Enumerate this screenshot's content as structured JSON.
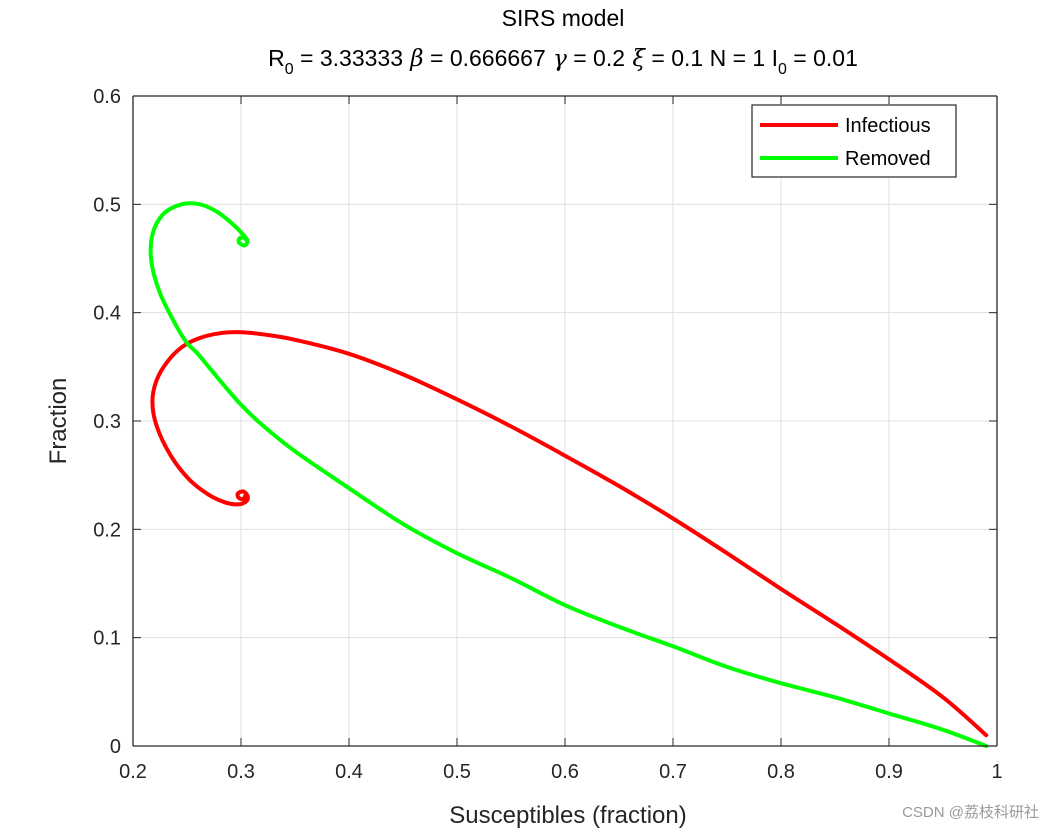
{
  "chart_data": {
    "type": "line",
    "title": "SIRS model",
    "subtitle_parts": [
      {
        "name": "R",
        "sub": "0",
        "value": " = 3.33333"
      },
      {
        "greek": "β",
        "value": " = 0.666667"
      },
      {
        "greek": "γ",
        "value": " = 0.2"
      },
      {
        "greek": "ξ",
        "value": " = 0.1"
      },
      {
        "name": "N",
        "value": " = 1"
      },
      {
        "name": "I",
        "sub": "0",
        "value": " = 0.01"
      }
    ],
    "xlabel": "Susceptibles (fraction)",
    "ylabel": "Fraction",
    "xlim": [
      0.2,
      1
    ],
    "ylim": [
      0,
      0.6
    ],
    "xticks": [
      "0.2",
      "0.3",
      "0.4",
      "0.5",
      "0.6",
      "0.7",
      "0.8",
      "0.9",
      "1"
    ],
    "yticks": [
      "0",
      "0.1",
      "0.2",
      "0.3",
      "0.4",
      "0.5",
      "0.6"
    ],
    "grid": true,
    "legend_position": "top-right",
    "series": [
      {
        "name": "Infectious",
        "color": "#ff0000",
        "points": [
          [
            0.99,
            0.01
          ],
          [
            0.95,
            0.045
          ],
          [
            0.9,
            0.08
          ],
          [
            0.85,
            0.113
          ],
          [
            0.8,
            0.145
          ],
          [
            0.75,
            0.178
          ],
          [
            0.7,
            0.21
          ],
          [
            0.65,
            0.24
          ],
          [
            0.6,
            0.268
          ],
          [
            0.55,
            0.295
          ],
          [
            0.5,
            0.32
          ],
          [
            0.45,
            0.343
          ],
          [
            0.4,
            0.362
          ],
          [
            0.35,
            0.375
          ],
          [
            0.32,
            0.38
          ],
          [
            0.3,
            0.382
          ],
          [
            0.28,
            0.381
          ],
          [
            0.26,
            0.376
          ],
          [
            0.245,
            0.368
          ],
          [
            0.232,
            0.355
          ],
          [
            0.222,
            0.338
          ],
          [
            0.218,
            0.318
          ],
          [
            0.222,
            0.295
          ],
          [
            0.235,
            0.268
          ],
          [
            0.252,
            0.246
          ],
          [
            0.27,
            0.232
          ],
          [
            0.285,
            0.225
          ],
          [
            0.297,
            0.223
          ],
          [
            0.305,
            0.226
          ],
          [
            0.306,
            0.231
          ],
          [
            0.302,
            0.235
          ],
          [
            0.297,
            0.233
          ],
          [
            0.298,
            0.229
          ],
          [
            0.302,
            0.228
          ],
          [
            0.304,
            0.231
          ]
        ]
      },
      {
        "name": "Removed",
        "color": "#00ff00",
        "points": [
          [
            0.99,
            0.0
          ],
          [
            0.95,
            0.015
          ],
          [
            0.9,
            0.03
          ],
          [
            0.85,
            0.045
          ],
          [
            0.8,
            0.058
          ],
          [
            0.75,
            0.073
          ],
          [
            0.7,
            0.092
          ],
          [
            0.65,
            0.11
          ],
          [
            0.6,
            0.13
          ],
          [
            0.55,
            0.155
          ],
          [
            0.5,
            0.178
          ],
          [
            0.45,
            0.205
          ],
          [
            0.4,
            0.238
          ],
          [
            0.35,
            0.272
          ],
          [
            0.32,
            0.296
          ],
          [
            0.3,
            0.315
          ],
          [
            0.28,
            0.338
          ],
          [
            0.26,
            0.362
          ],
          [
            0.25,
            0.372
          ],
          [
            0.24,
            0.388
          ],
          [
            0.225,
            0.418
          ],
          [
            0.217,
            0.447
          ],
          [
            0.218,
            0.472
          ],
          [
            0.228,
            0.491
          ],
          [
            0.245,
            0.5
          ],
          [
            0.262,
            0.5
          ],
          [
            0.278,
            0.493
          ],
          [
            0.292,
            0.482
          ],
          [
            0.302,
            0.472
          ],
          [
            0.306,
            0.466
          ],
          [
            0.303,
            0.462
          ],
          [
            0.298,
            0.465
          ],
          [
            0.299,
            0.469
          ],
          [
            0.303,
            0.469
          ],
          [
            0.305,
            0.467
          ]
        ]
      }
    ]
  },
  "watermark": "CSDN @荔枝科研社"
}
